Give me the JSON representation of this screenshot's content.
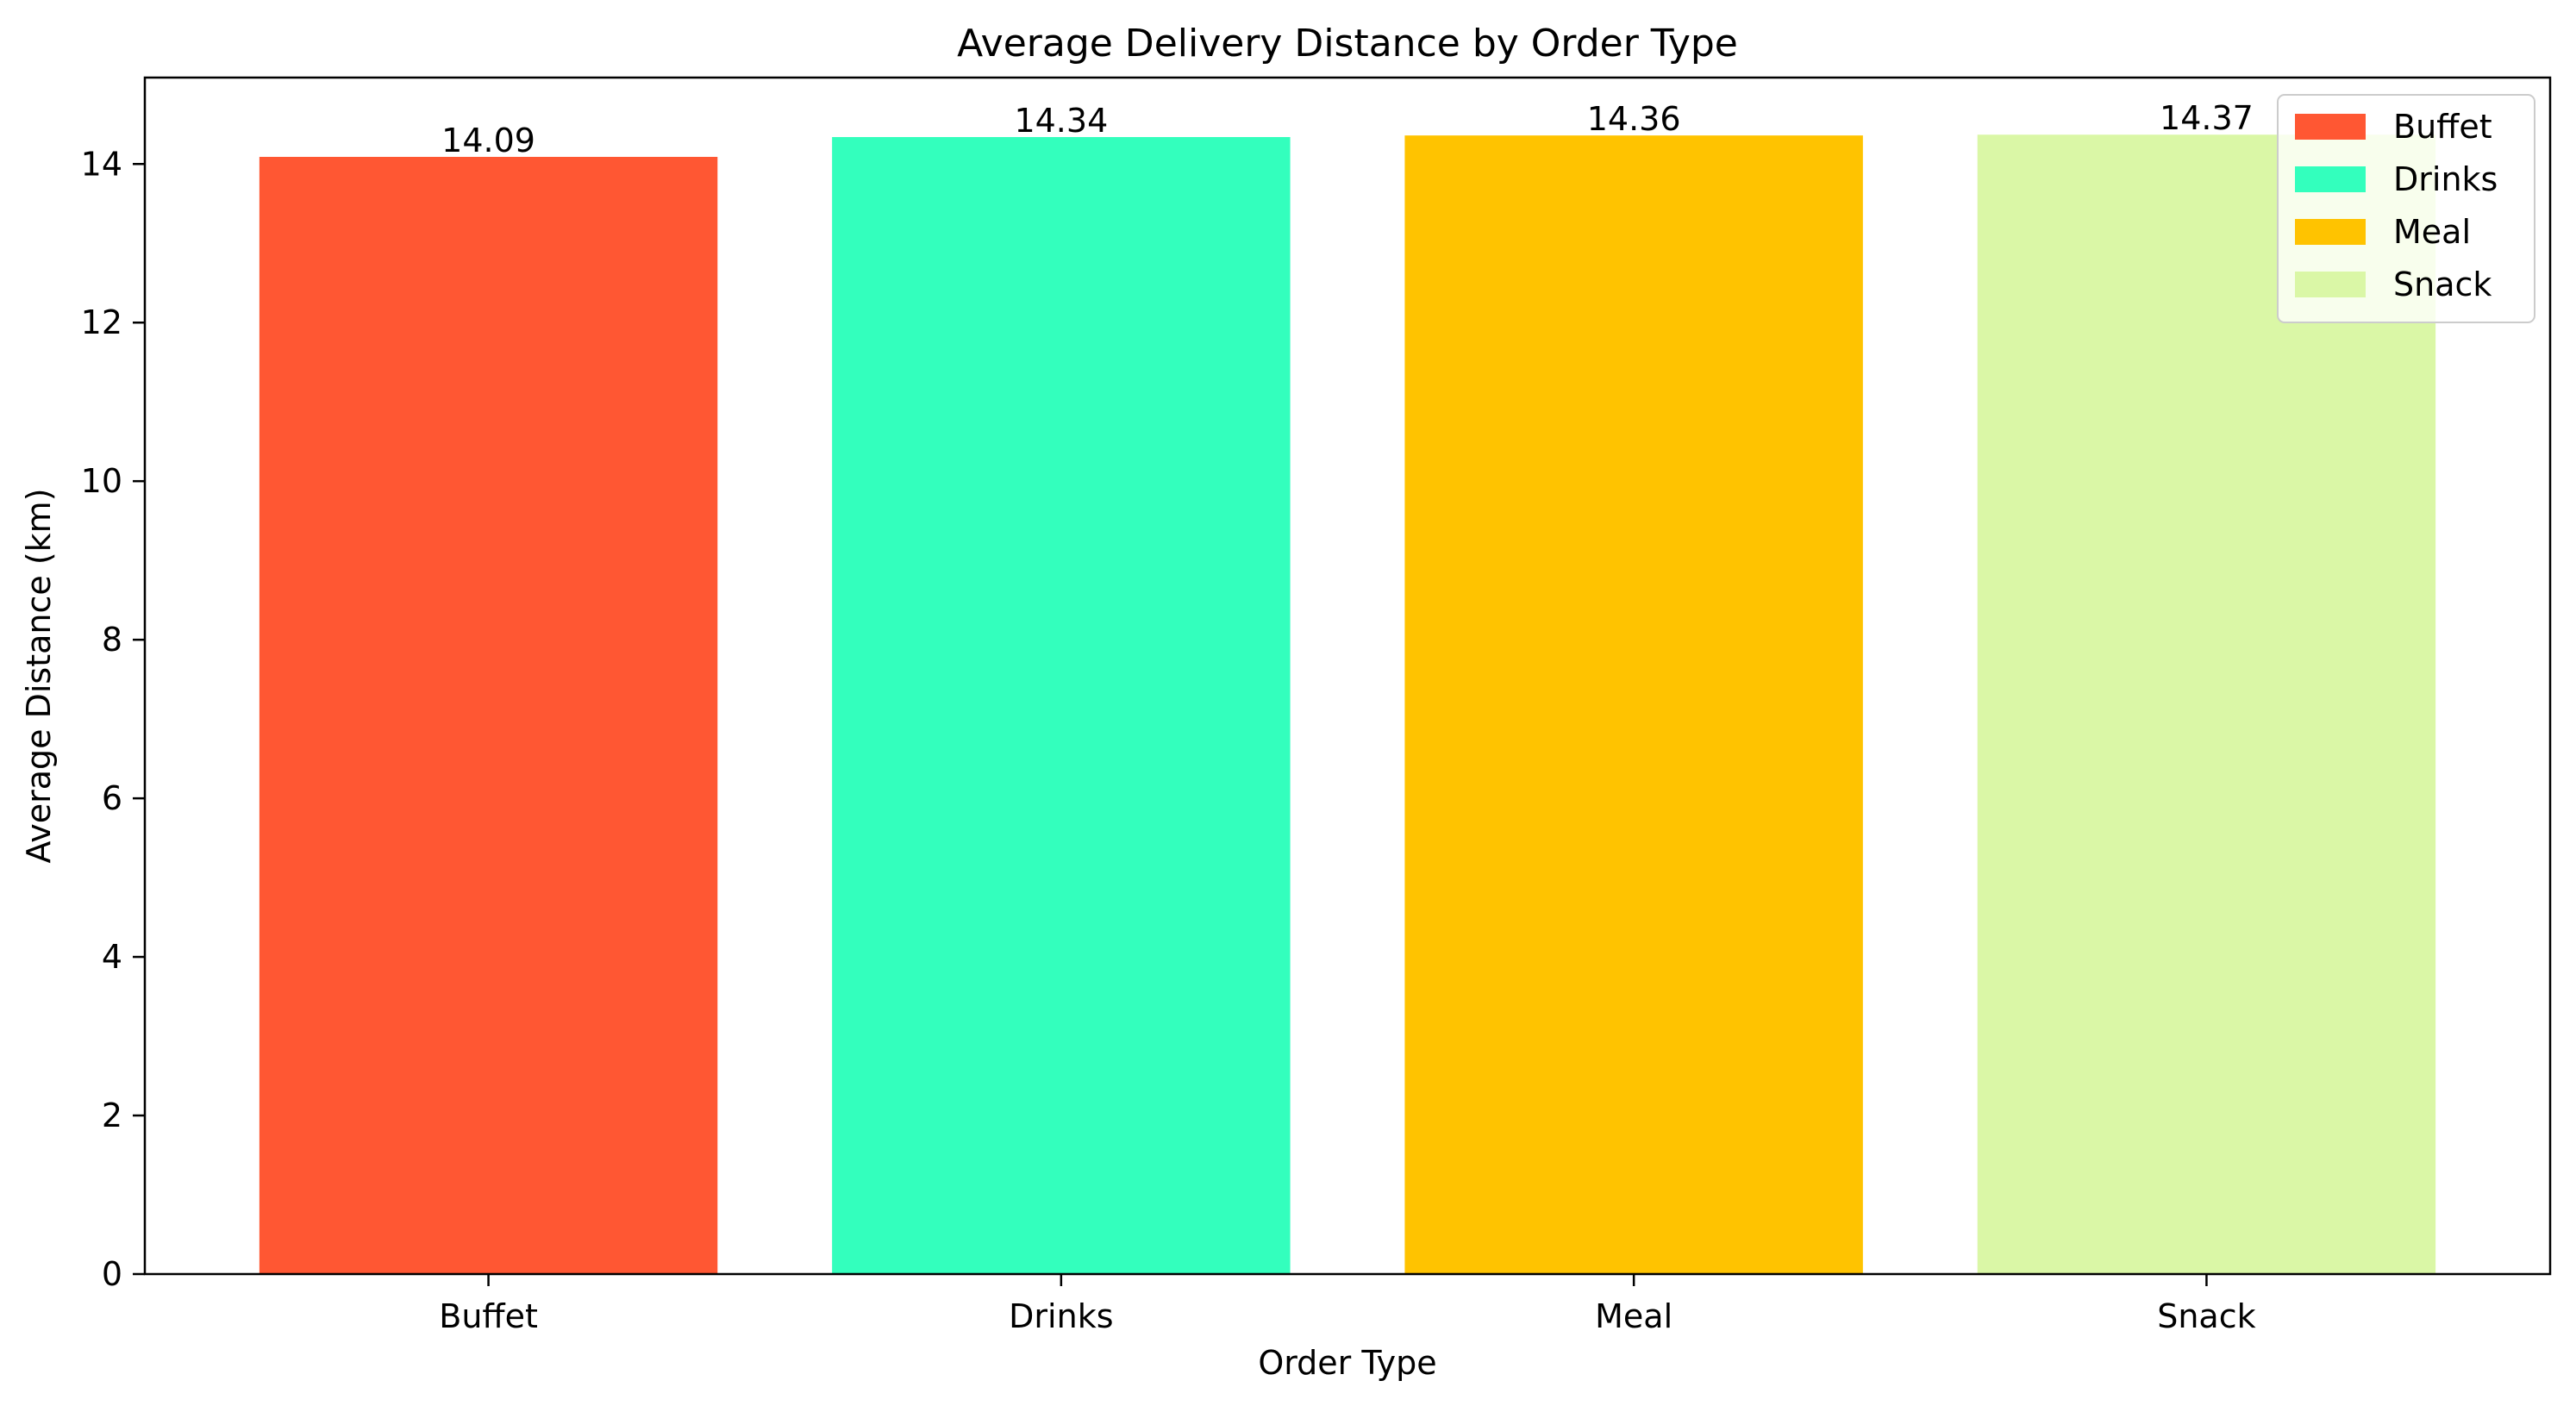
{
  "chart_data": {
    "type": "bar",
    "title": "Average Delivery Distance by Order Type",
    "xlabel": "Order Type",
    "ylabel": "Average Distance (km)",
    "categories": [
      "Buffet",
      "Drinks",
      "Meal",
      "Snack"
    ],
    "values": [
      14.09,
      14.34,
      14.36,
      14.37
    ],
    "data_labels": [
      "14.09",
      "14.34",
      "14.36",
      "14.37"
    ],
    "colors": [
      "#ff5733",
      "#33ffbd",
      "#ffc300",
      "#daf7a6"
    ],
    "ylim": [
      0,
      15.09
    ],
    "yticks": [
      0,
      2,
      4,
      6,
      8,
      10,
      12,
      14
    ],
    "grid": false,
    "legend": {
      "placement": "upper right",
      "entries": [
        "Buffet",
        "Drinks",
        "Meal",
        "Snack"
      ]
    }
  }
}
